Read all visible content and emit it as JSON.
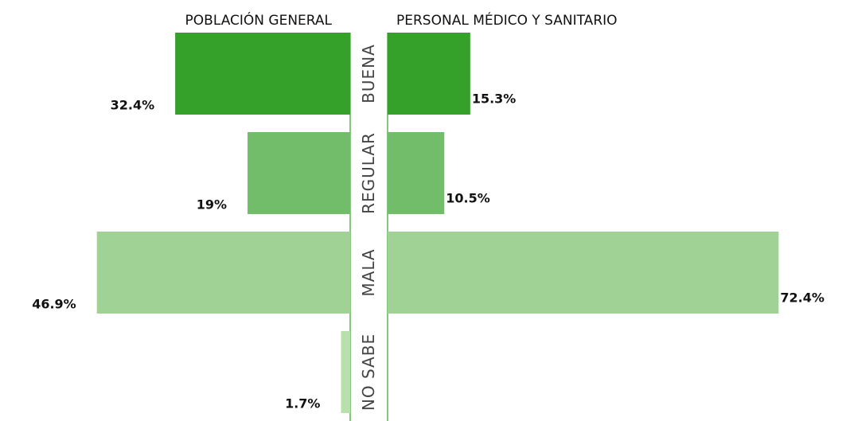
{
  "chart_data": {
    "type": "butterfly-bar",
    "categories": [
      "BUENA",
      "REGULAR",
      "MALA",
      "NO SABE"
    ],
    "colors": [
      "#35a02a",
      "#72bd6a",
      "#a0d195",
      "#b8e0ad"
    ],
    "xlim": [
      0,
      75
    ],
    "series": [
      {
        "name": "POBLACIÓN GENERAL",
        "values": [
          32.4,
          19,
          46.9,
          1.7
        ],
        "value_labels": [
          "32.4%",
          "19%",
          "46.9%",
          "1.7%"
        ]
      },
      {
        "name": "PERSONAL MÉDICO Y SANITARIO",
        "values": [
          15.3,
          10.5,
          72.4,
          null
        ],
        "value_labels": [
          "15.3%",
          "10.5%",
          "72.4%",
          null
        ]
      }
    ]
  }
}
